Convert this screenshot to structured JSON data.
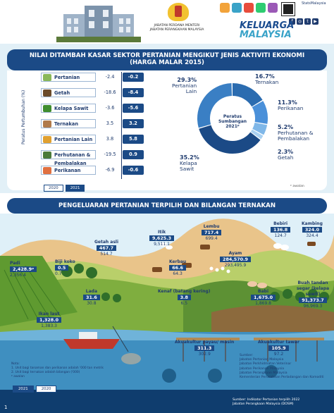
{
  "header": {
    "agency_lines": [
      "JABATAN PERDANA MENTERI",
      "JABATAN PERANGKAAN MALAYSIA"
    ],
    "stats_label": "StatsMalaysia",
    "keluarga": "KELUARGA",
    "malaysia": "MALAYSIA"
  },
  "section1": {
    "title_line1": "NILAI DITAMBAH KASAR SEKTOR PERTANIAN MENGIKUT JENIS AKTIVITI EKONOMI",
    "title_line2": "(HARGA MALAR 2015)",
    "axis_label": "Peratus Pertumbuhan (%)",
    "legend_2020": "2020",
    "legend_2021": "2021",
    "footnote": "ᵖ awalan",
    "donut_center_line1": "Peratus",
    "donut_center_line2": "Sumbangan",
    "donut_center_line3": "2021ᵖ"
  },
  "chart_data": {
    "type": "bar",
    "categories": [
      "Pertanian",
      "Getah",
      "Kelapa Sawit",
      "Ternakan",
      "Pertanian Lain",
      "Perhutanan & Pembalakan",
      "Perikanan"
    ],
    "series": [
      {
        "name": "2020",
        "values": [
          -2.4,
          -18.6,
          -3.6,
          3.5,
          3.8,
          -19.5,
          -6.9
        ]
      },
      {
        "name": "2021",
        "values": [
          -0.2,
          -8.4,
          -5.6,
          3.2,
          5.8,
          0.9,
          -0.6
        ]
      }
    ],
    "value_labels_2020": [
      "-2.4",
      "-18.6",
      "-3.6",
      "3.5",
      "3.8",
      "-19.5",
      "-6.9"
    ],
    "value_labels_2021": [
      "-0.2",
      "-8.4",
      "-5.6",
      "3.2",
      "5.8",
      "0.9",
      "-0.6"
    ],
    "icon_colors": [
      "#8ab85a",
      "#6b4b2a",
      "#3f8d2f",
      "#b07a4a",
      "#e0a030",
      "#4a7a3a",
      "#e07040"
    ]
  },
  "donut": {
    "type": "pie",
    "slices": [
      {
        "label": "Ternakan",
        "pct": "16.7%",
        "value": 16.7,
        "color": "#2b6cb0"
      },
      {
        "label": "Perikanan",
        "pct": "11.3%",
        "value": 11.3,
        "color": "#4a90d9"
      },
      {
        "label": "Perhutanan & Pembalakan",
        "pct": "5.2%",
        "value": 5.2,
        "color": "#7fb7e8"
      },
      {
        "label": "Getah",
        "pct": "2.3%",
        "value": 2.3,
        "color": "#a9d1f2"
      },
      {
        "label": "Kelapa Sawit",
        "pct": "35.2%",
        "value": 35.2,
        "color": "#1b4a86"
      },
      {
        "label": "Pertanian Lain",
        "pct": "29.3%",
        "value": 29.3,
        "color": "#3a7fc4"
      }
    ],
    "labels": {
      "ternakan": "Ternakan",
      "perikanan": "Perikanan",
      "perhutanan": "Perhutanan &",
      "pembalakan": "Pembalakan",
      "getah": "Getah",
      "sawit1": "Kelapa",
      "sawit2": "Sawit",
      "lain1": "Pertanian",
      "lain2": "Lain"
    }
  },
  "section2": {
    "title": "PENGELUARAN PERTANIAN TERPILIH DAN BILANGAN TERNAKAN",
    "items": [
      {
        "name": "Padi",
        "v21": "2,428.9ᵖ",
        "v20": "2,356.4"
      },
      {
        "name": "Biji koko",
        "v21": "0.5",
        "v20": "0.7"
      },
      {
        "name": "Getah asli",
        "v21": "467.7",
        "v20": "514.7"
      },
      {
        "name": "Itik",
        "v21": "9,625.3",
        "v20": "9,511.1"
      },
      {
        "name": "Lembu",
        "v21": "717.4",
        "v20": "699.4"
      },
      {
        "name": "Bebiri",
        "v21": "136.8",
        "v20": "124.7"
      },
      {
        "name": "Kambing",
        "v21": "324.0",
        "v20": "324.4"
      },
      {
        "name": "Ayam",
        "v21": "284,570.9",
        "v20": "293,495.9"
      },
      {
        "name": "Kerbau",
        "v21": "66.6",
        "v20": "64.3"
      },
      {
        "name": "Lada",
        "v21": "31.6",
        "v20": "30.8"
      },
      {
        "name": "Kenaf (batang kering)",
        "v21": "3.8",
        "v20": "6.5"
      },
      {
        "name": "Babi",
        "v21": "1,675.0",
        "v20": "1,869.8"
      },
      {
        "name": "Buah tandan segar (kelapa sawit)",
        "v21": "91,373.7",
        "v20": "96,969.3"
      },
      {
        "name": "Ikan laut",
        "v21": "1,328.0",
        "v20": "1,383.3"
      },
      {
        "name": "Akuakultur payau/ masin",
        "v21": "311.3",
        "v20": "302.9"
      },
      {
        "name": "Akuakultur tawar",
        "v21": "105.9",
        "v20": "97.2"
      }
    ],
    "note_title": "Nota:",
    "notes": [
      "1. Unit bagi tanaman dan perikanan adalah '000 tan metrik",
      "2. Unit bagi ternakan adalah bilangan ('000)"
    ],
    "footnote": "ᵖ awalan",
    "legend_2021": "2021",
    "legend_2020": "2020",
    "source_title": "Sumber:",
    "sources": [
      "Jabatan Pertanian Malaysia",
      "Jabatan Perkhidmatan Veterinar",
      "Jabatan Perikanan Malaysia",
      "Jabatan Perangkaan Malaysia",
      "Kementerian Perusahaan Perladangan dan Komoditi"
    ],
    "bottom_source": [
      "Sumber: Indikator Pertanian terpilih 2022",
      "Jabatan Perangkaan Malaysia (DOSM)"
    ],
    "page": "1"
  }
}
